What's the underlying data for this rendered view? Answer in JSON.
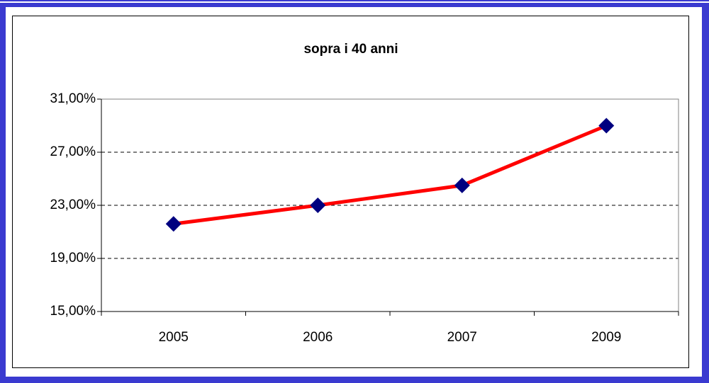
{
  "chart_data": {
    "type": "line",
    "title": "sopra i 40 anni",
    "categories": [
      "2005",
      "2006",
      "2007",
      "2009"
    ],
    "series": [
      {
        "name": "sopra i 40 anni",
        "color": "#ff0000",
        "marker_color": "#000080",
        "values": [
          21.6,
          23.0,
          24.5,
          29.0
        ]
      }
    ],
    "ylim": [
      15,
      31
    ],
    "yticks": [
      {
        "value": 15,
        "label": "15,00%"
      },
      {
        "value": 19,
        "label": "19,00%"
      },
      {
        "value": 23,
        "label": "23,00%"
      },
      {
        "value": 27,
        "label": "27,00%"
      },
      {
        "value": 31,
        "label": "31,00%"
      }
    ],
    "grid": true
  }
}
